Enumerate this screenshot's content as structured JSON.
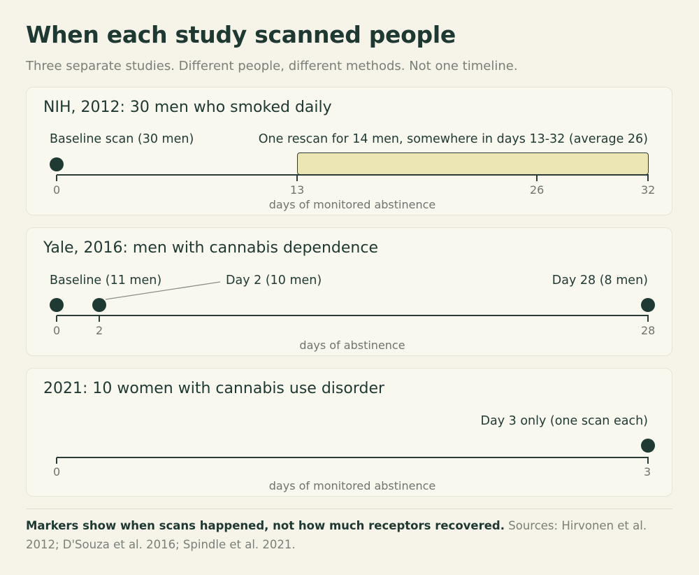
{
  "title": "When each study scanned people",
  "subtitle": "Three separate studies. Different people, different methods. Not one timeline.",
  "panels": [
    {
      "heading": "NIH, 2012: 30 men who smoked daily",
      "axis_label": "days of monitored abstinence",
      "domain": [
        0,
        32
      ],
      "ticks": [
        "0",
        "13",
        "26",
        "32"
      ],
      "points": [
        {
          "day": 0,
          "label": "Baseline scan (30 men)"
        }
      ],
      "range": {
        "from": 13,
        "to": 32,
        "label": "One rescan for 14 men, somewhere in days 13-32 (average 26)"
      }
    },
    {
      "heading": "Yale, 2016: men with cannabis dependence",
      "axis_label": "days of abstinence",
      "domain": [
        0,
        28
      ],
      "ticks": [
        "0",
        "2",
        "28"
      ],
      "points": [
        {
          "day": 0,
          "label": "Baseline (11 men)"
        },
        {
          "day": 2,
          "label": "Day 2 (10 men)"
        },
        {
          "day": 28,
          "label": "Day 28 (8 men)"
        }
      ]
    },
    {
      "heading": "2021: 10 women with cannabis use disorder",
      "axis_label": "days of monitored abstinence",
      "domain": [
        0,
        3
      ],
      "ticks": [
        "0",
        "3"
      ],
      "points": [
        {
          "day": 3,
          "label": "Day 3 only (one scan each)"
        }
      ]
    }
  ],
  "footer": {
    "bold": "Markers show when scans happened, not how much receptors recovered.",
    "sources": "Sources: Hirvonen et al. 2012; D'Souza et al. 2016; Spindle et al. 2021."
  },
  "colors": {
    "background": "#f6f4e9",
    "card": "#f9f8ef",
    "ink": "#1e3832",
    "muted": "#7a7f78",
    "band": "#ebe6b3"
  }
}
